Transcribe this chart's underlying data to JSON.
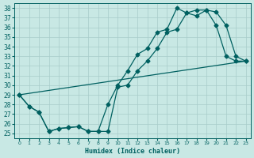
{
  "xlabel": "Humidex (Indice chaleur)",
  "ylabel": "",
  "bg_color": "#c8e8e4",
  "grid_color": "#a8ccca",
  "line_color": "#006060",
  "xlim": [
    -0.5,
    23.5
  ],
  "ylim": [
    24.5,
    38.5
  ],
  "yticks": [
    25,
    26,
    27,
    28,
    29,
    30,
    31,
    32,
    33,
    34,
    35,
    36,
    37,
    38
  ],
  "xticks": [
    0,
    1,
    2,
    3,
    4,
    5,
    6,
    7,
    8,
    9,
    10,
    11,
    12,
    13,
    14,
    15,
    16,
    17,
    18,
    19,
    20,
    21,
    22,
    23
  ],
  "line1_x": [
    0,
    1,
    2,
    3,
    4,
    5,
    6,
    7,
    8,
    9,
    10,
    11,
    12,
    13,
    14,
    15,
    16,
    17,
    18,
    19,
    20,
    21,
    22,
    23
  ],
  "line1_y": [
    29.0,
    27.8,
    27.2,
    25.2,
    25.5,
    25.6,
    25.7,
    25.2,
    25.2,
    28.0,
    30.0,
    31.5,
    33.2,
    33.8,
    35.5,
    35.8,
    38.0,
    37.5,
    37.2,
    37.8,
    37.6,
    36.2,
    33.0,
    32.5
  ],
  "line2_x": [
    0,
    1,
    2,
    3,
    4,
    5,
    6,
    7,
    8,
    9,
    10,
    11,
    12,
    13,
    14,
    15,
    16,
    17,
    18,
    19,
    20,
    21,
    22,
    23
  ],
  "line2_y": [
    29.0,
    27.8,
    27.2,
    25.2,
    25.5,
    25.6,
    25.7,
    25.2,
    25.2,
    25.2,
    29.8,
    30.0,
    31.5,
    32.5,
    33.8,
    35.5,
    35.8,
    37.5,
    37.8,
    37.8,
    36.2,
    33.0,
    32.5,
    32.5
  ],
  "line3_x": [
    0,
    23
  ],
  "line3_y": [
    29.0,
    32.5
  ]
}
